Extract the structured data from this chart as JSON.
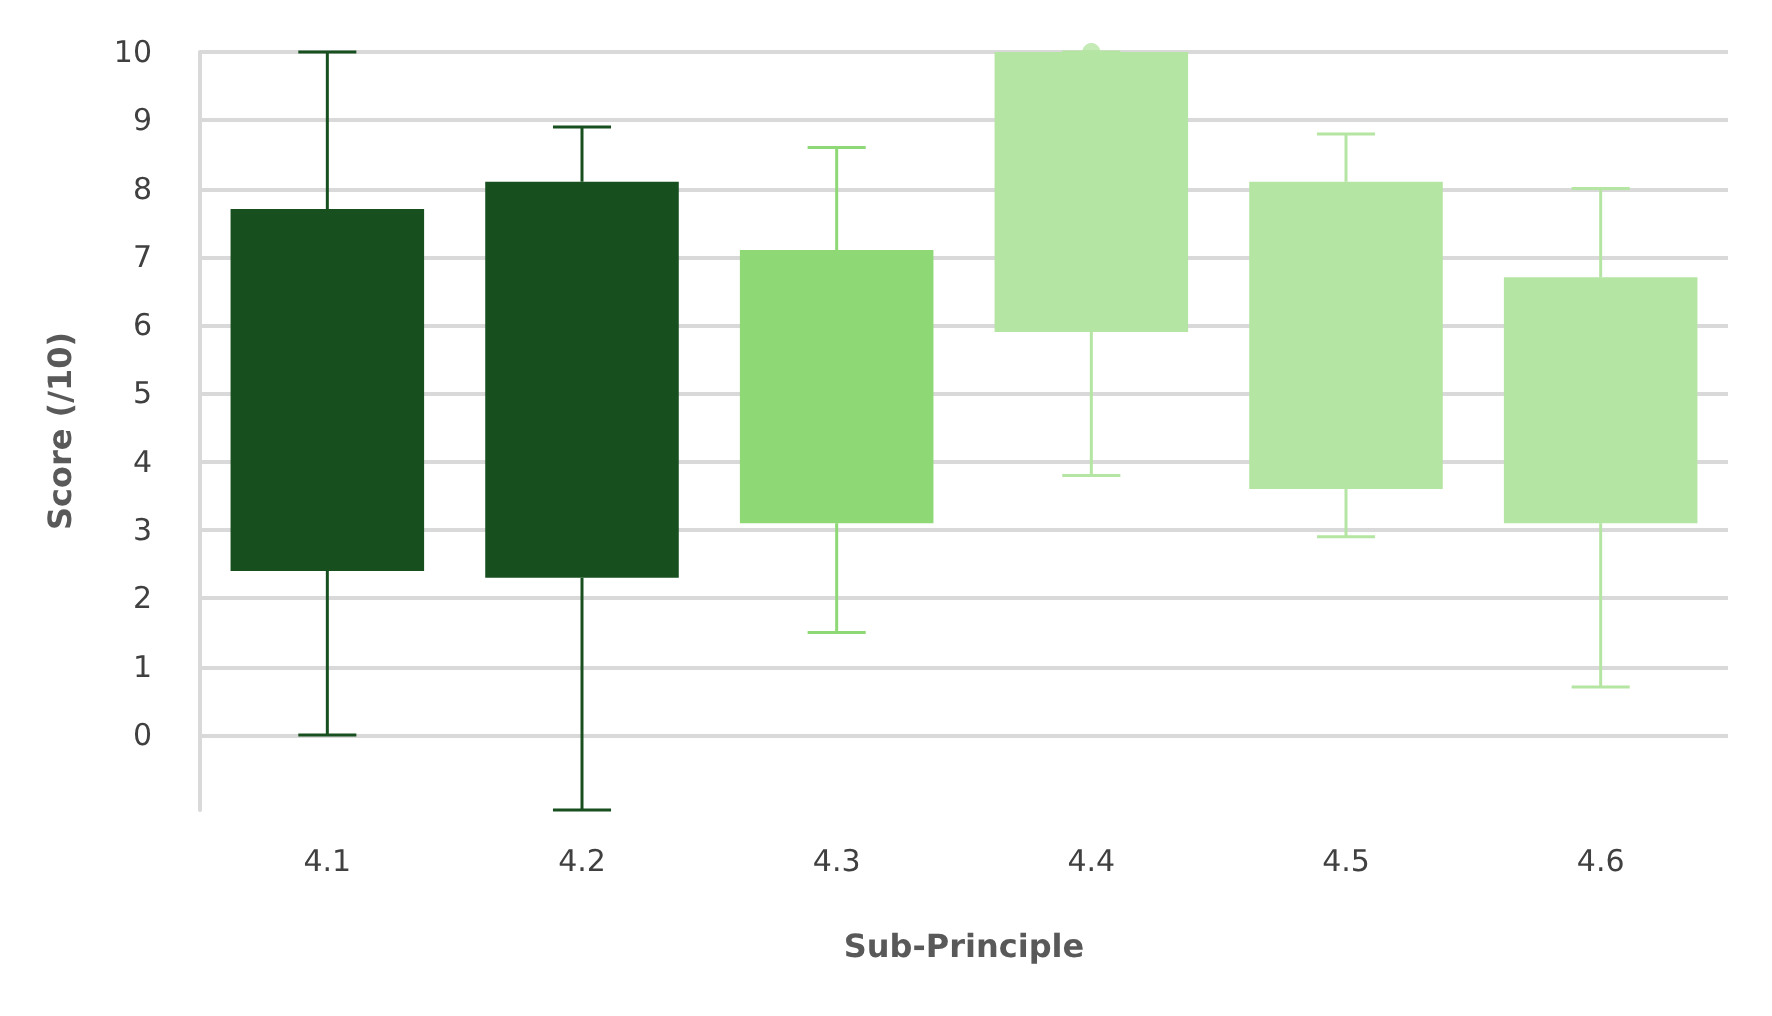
{
  "chart_data": {
    "type": "box",
    "xlabel": "Sub-Principle",
    "ylabel": "Score (/10)",
    "categories": [
      "4.1",
      "4.2",
      "4.3",
      "4.4",
      "4.5",
      "4.6"
    ],
    "colors": [
      "#174f1e",
      "#174f1e",
      "#8ed975",
      "#b5e5a2",
      "#b5e5a2",
      "#b5e5a2"
    ],
    "boxes": [
      {
        "low": 0,
        "q1": 2.4,
        "median": null,
        "q3": 7.7,
        "high": 10
      },
      {
        "low": -1.1,
        "q1": 2.3,
        "median": null,
        "q3": 8.1,
        "high": 8.9
      },
      {
        "low": 1.5,
        "q1": 3.1,
        "median": null,
        "q3": 7.1,
        "high": 8.6
      },
      {
        "low": 3.8,
        "q1": 5.9,
        "median": null,
        "q3": 10,
        "high": 10,
        "outliers": [
          10
        ]
      },
      {
        "low": 2.9,
        "q1": 3.6,
        "median": null,
        "q3": 8.1,
        "high": 8.8
      },
      {
        "low": 0.7,
        "q1": 3.1,
        "median": null,
        "q3": 6.7,
        "high": 8
      }
    ],
    "ylim": [
      -1.1,
      10
    ],
    "yticks": [
      0,
      1,
      2,
      3,
      4,
      5,
      6,
      7,
      8,
      9,
      10
    ],
    "grid": "y"
  }
}
